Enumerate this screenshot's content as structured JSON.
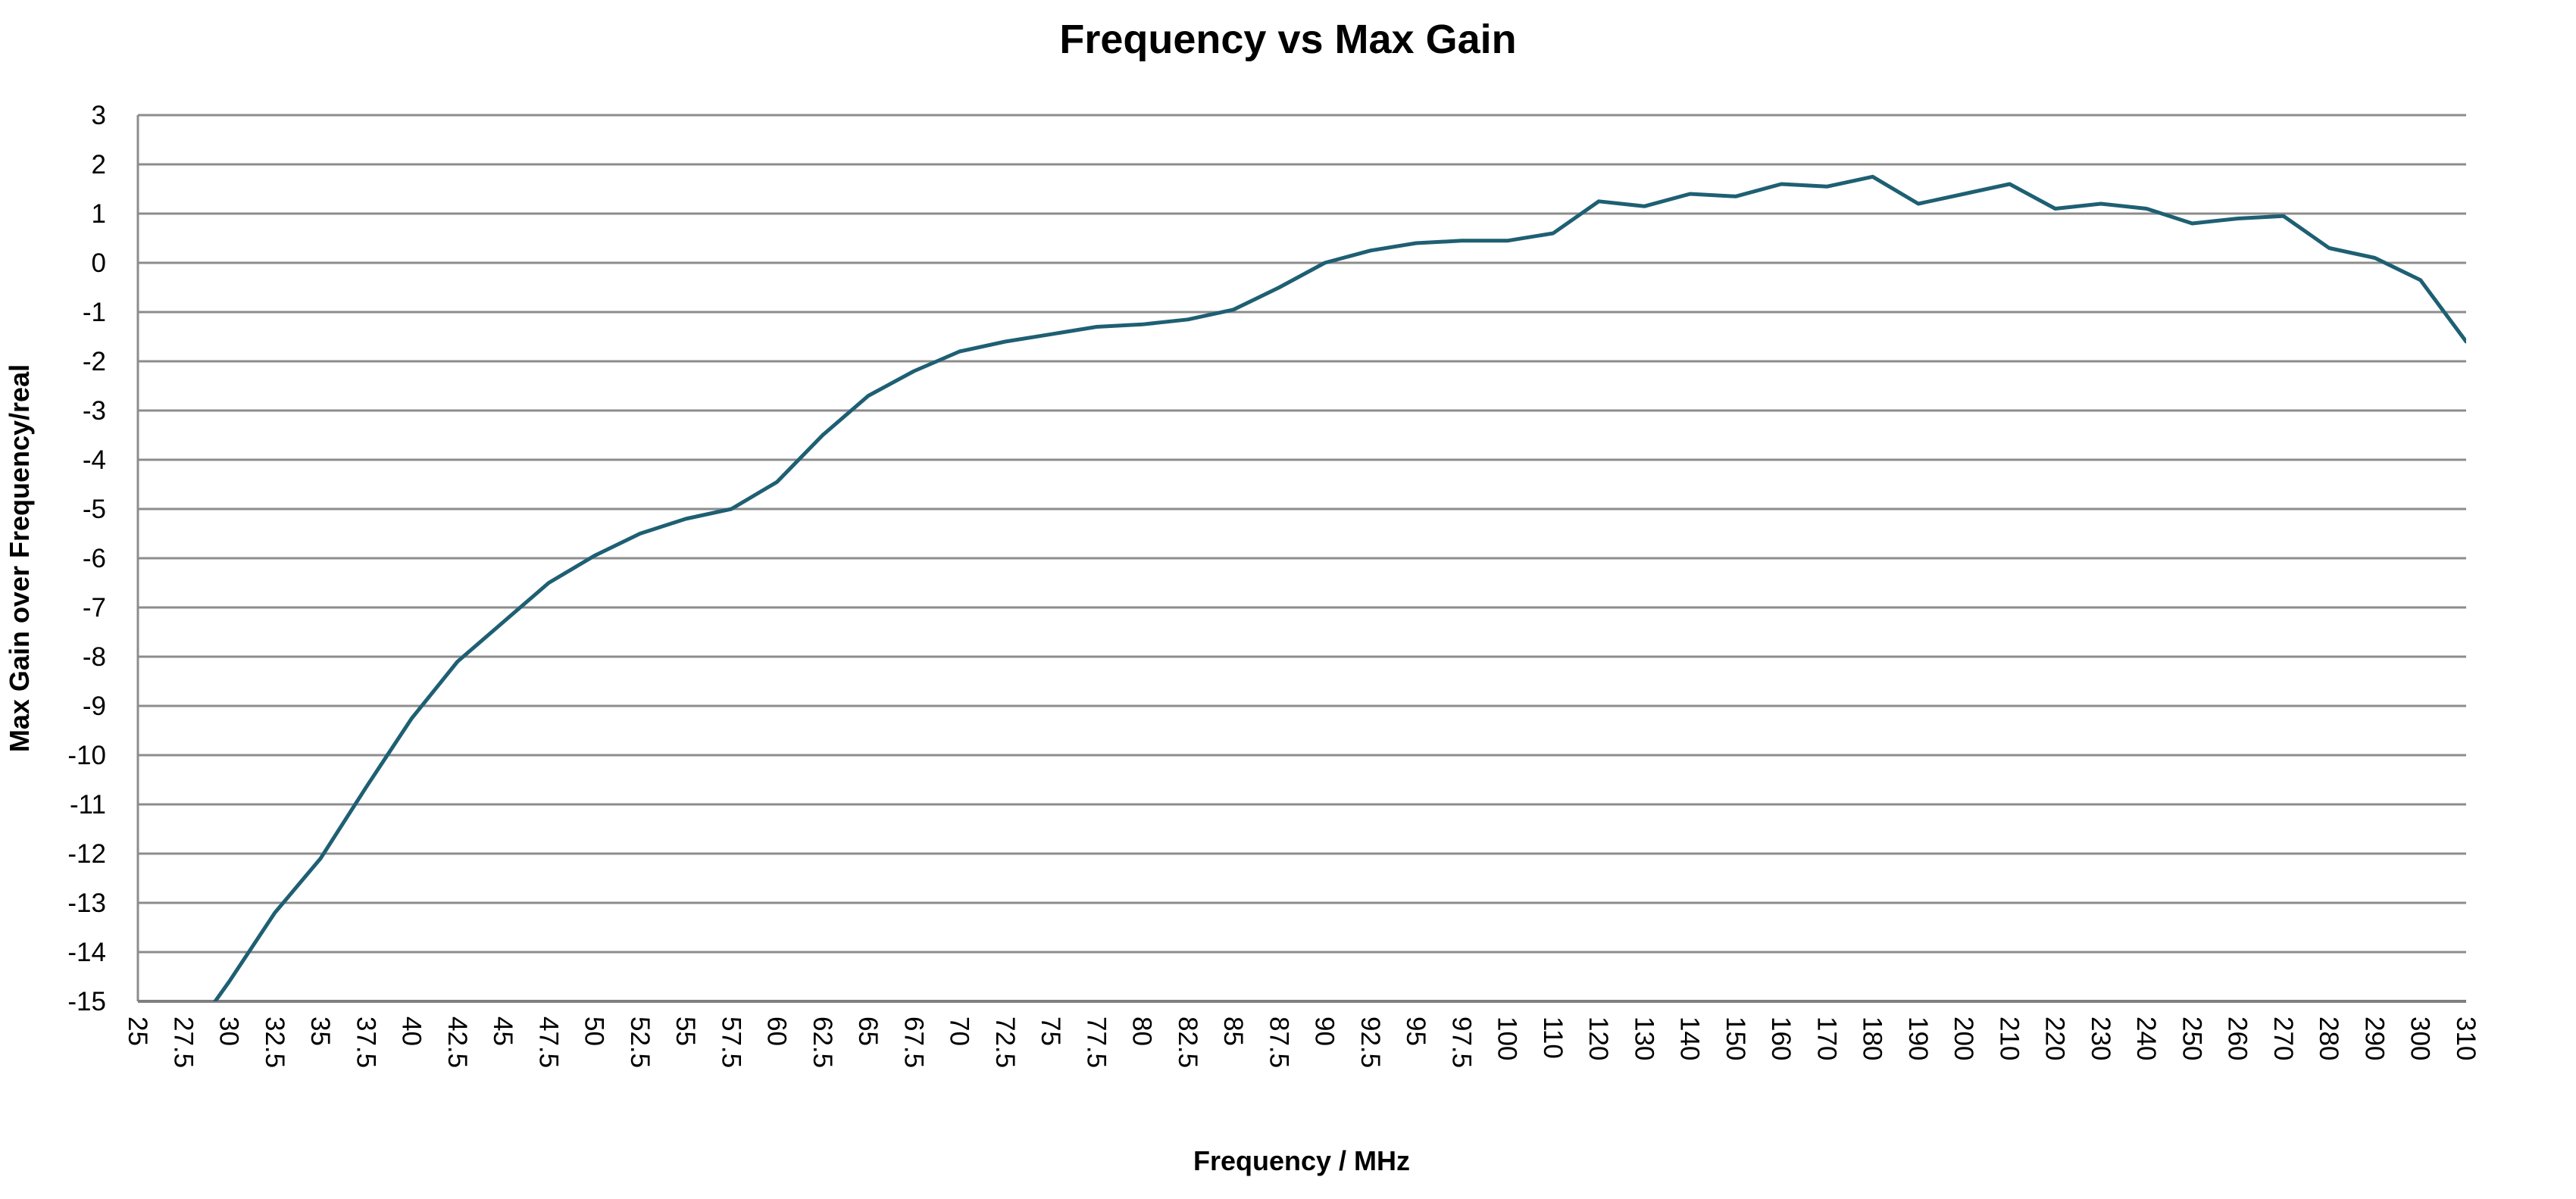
{
  "chart": {
    "title": "Frequency vs Max Gain",
    "x_axis_title": "Frequency / MHz",
    "y_axis_title": "Max Gain over Frequency/real"
  },
  "chart_data": {
    "type": "line",
    "title": "Frequency vs Max Gain",
    "xlabel": "Frequency / MHz",
    "ylabel": "Max Gain over Frequency/real",
    "categories": [
      "25",
      "27.5",
      "30",
      "32.5",
      "35",
      "37.5",
      "40",
      "42.5",
      "45",
      "47.5",
      "50",
      "52.5",
      "55",
      "57.5",
      "60",
      "62.5",
      "65",
      "67.5",
      "70",
      "72.5",
      "75",
      "77.5",
      "80",
      "82.5",
      "85",
      "87.5",
      "90",
      "92.5",
      "95",
      "97.5",
      "100",
      "110",
      "120",
      "130",
      "140",
      "150",
      "160",
      "170",
      "180",
      "190",
      "200",
      "210",
      "220",
      "230",
      "240",
      "250",
      "260",
      "270",
      "280",
      "290",
      "300",
      "310"
    ],
    "values": [
      null,
      -15.9,
      -14.6,
      -13.2,
      -12.1,
      -10.65,
      -9.25,
      -8.1,
      -7.3,
      -6.5,
      -5.95,
      -5.5,
      -5.2,
      -5.0,
      -4.45,
      -3.5,
      -2.7,
      -2.2,
      -1.8,
      -1.6,
      -1.45,
      -1.3,
      -1.25,
      -1.15,
      -0.95,
      -0.5,
      0.0,
      0.25,
      0.4,
      0.45,
      0.45,
      0.6,
      1.25,
      1.15,
      1.4,
      1.35,
      1.6,
      1.55,
      1.75,
      1.2,
      1.4,
      1.6,
      1.1,
      1.2,
      1.1,
      0.8,
      0.9,
      0.95,
      0.3,
      0.1,
      -0.35,
      -1.6
    ],
    "series_name": "Max Gain",
    "ylim": [
      -15,
      3
    ],
    "y_tick_step": 1,
    "y_tick_labels": [
      "3",
      "2",
      "1",
      "0",
      "-1",
      "-2",
      "-3",
      "-4",
      "-5",
      "-6",
      "-7",
      "-8",
      "-9",
      "-10",
      "-11",
      "-12",
      "-13",
      "-14",
      "-15"
    ],
    "grid": "horizontal-only",
    "legend": "none",
    "x_label_rotation_deg": 90,
    "line_color": "#1E5F73",
    "gridline_color": "#8C8C8C",
    "axis_line_color": "#7F7F7F",
    "background_color": "#FFFFFF",
    "note": "values at 25 and 27.5 MHz lie below the y-axis minimum; the line is clipped at the bottom of the plot area"
  }
}
